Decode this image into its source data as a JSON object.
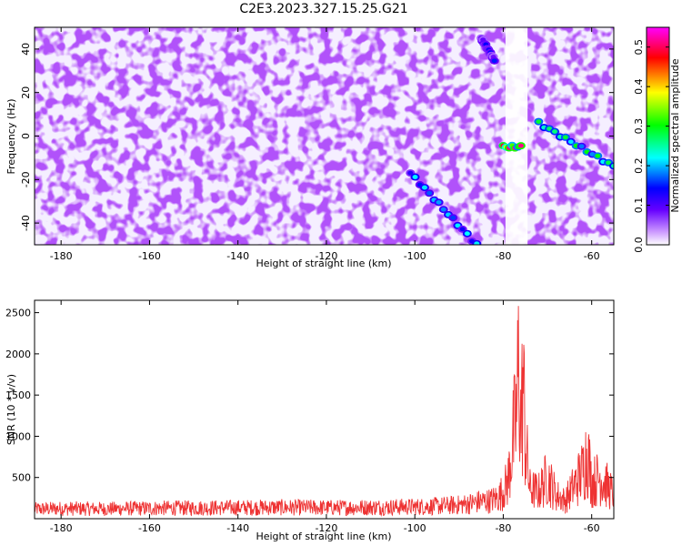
{
  "title": "C2E3.2023.327.15.25.G21",
  "colors": {
    "snr_line": "#ee3333",
    "colormap": [
      "#ffffff",
      "#cc99ff",
      "#6600ff",
      "#0000ff",
      "#00ffff",
      "#00ff00",
      "#ffff00",
      "#ff0000",
      "#ff00ff"
    ]
  },
  "chart_data": [
    {
      "type": "heatmap",
      "xlabel": "Height of straight line (km)",
      "ylabel": "Frequency (Hz)",
      "xlim": [
        -186,
        -55
      ],
      "ylim": [
        -50,
        50
      ],
      "x_ticks": [
        -180,
        -160,
        -140,
        -120,
        -100,
        -80,
        -60
      ],
      "y_ticks": [
        -40,
        -20,
        0,
        20,
        40
      ],
      "colorbar": {
        "label": "Normalized spectral amplitude",
        "range": [
          0,
          0.55
        ],
        "ticks": [
          0.0,
          0.1,
          0.2,
          0.3,
          0.4,
          0.5
        ]
      },
      "features": [
        {
          "kind": "diagonal_streak",
          "from": [
            -101,
            -17
          ],
          "to": [
            -86,
            -50
          ],
          "peak": 0.22
        },
        {
          "kind": "strong_band",
          "from": [
            -80,
            -5
          ],
          "to": [
            -76,
            -5
          ],
          "peak": 0.52
        },
        {
          "kind": "descending_band",
          "from": [
            -72,
            6
          ],
          "to": [
            -55,
            -14
          ],
          "peak": 0.3
        },
        {
          "kind": "high_frequency_blob",
          "from": [
            -85,
            45
          ],
          "to": [
            -82,
            35
          ],
          "peak": 0.15
        }
      ],
      "blank_region": [
        -79.5,
        -74.5
      ]
    },
    {
      "type": "line",
      "xlabel": "Height of straight line (km)",
      "ylabel": "SNR (10 * v/v)",
      "xlim": [
        -186,
        -55
      ],
      "ylim": [
        0,
        2650
      ],
      "x_ticks": [
        -180,
        -160,
        -140,
        -120,
        -100,
        -80,
        -60
      ],
      "y_ticks": [
        500,
        1000,
        1500,
        2000,
        2500
      ],
      "series": [
        {
          "x": [
            -186,
            -180,
            -170,
            -160,
            -150,
            -140,
            -130,
            -120,
            -110,
            -100,
            -95,
            -90,
            -87,
            -85,
            -83,
            -81,
            -79,
            -78,
            -77,
            -76.5,
            -76,
            -75.5,
            -75,
            -74,
            -72,
            -70,
            -68,
            -66,
            -64,
            -62,
            -61,
            -60,
            -58,
            -56,
            -55
          ],
          "y": [
            160,
            170,
            165,
            175,
            180,
            185,
            190,
            185,
            190,
            200,
            210,
            230,
            260,
            290,
            300,
            360,
            600,
            1200,
            1700,
            2650,
            1500,
            2300,
            1300,
            500,
            450,
            700,
            400,
            300,
            550,
            800,
            1150,
            600,
            700,
            500,
            400
          ]
        }
      ]
    }
  ]
}
